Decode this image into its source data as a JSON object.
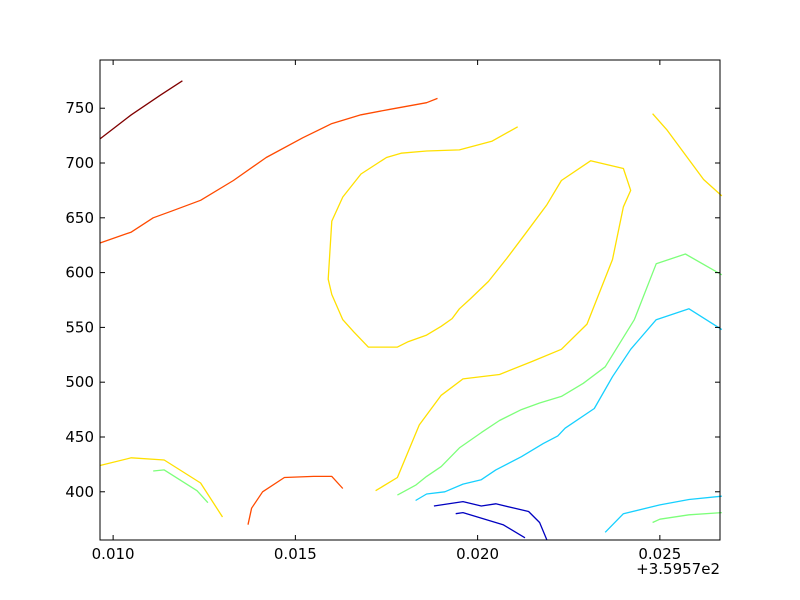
{
  "chart_data": {
    "type": "line",
    "subtype": "contour",
    "title": "",
    "xlabel": "",
    "ylabel": "",
    "x_offset_label": "+3.5957e2",
    "xlim": [
      0.00964,
      0.02665
    ],
    "ylim": [
      356,
      794
    ],
    "xticks": [
      0.01,
      0.015,
      0.02,
      0.025
    ],
    "xtick_labels": [
      "0.010",
      "0.015",
      "0.020",
      "0.025"
    ],
    "yticks": [
      400,
      450,
      500,
      550,
      600,
      650,
      700,
      750
    ],
    "ytick_labels": [
      "400",
      "450",
      "500",
      "550",
      "600",
      "650",
      "700",
      "750"
    ],
    "grid": false,
    "legend": "none",
    "series": [
      {
        "color": "#800000",
        "segments": [
          [
            [
              0.00964,
              722
            ],
            [
              0.0105,
              744
            ],
            [
              0.0113,
              762
            ],
            [
              0.0119,
              775
            ]
          ]
        ]
      },
      {
        "color": "#ff4a00",
        "segments": [
          [
            [
              0.00964,
              627
            ],
            [
              0.0105,
              637
            ],
            [
              0.0111,
              650
            ],
            [
              0.0116,
              656
            ],
            [
              0.0124,
              666
            ],
            [
              0.0133,
              684
            ],
            [
              0.0142,
              705
            ],
            [
              0.0152,
              723
            ],
            [
              0.016,
              736
            ],
            [
              0.0168,
              744
            ],
            [
              0.0176,
              749
            ],
            [
              0.0186,
              755
            ],
            [
              0.0189,
              759
            ]
          ],
          [
            [
              0.0137,
              370
            ],
            [
              0.0138,
              385
            ],
            [
              0.0141,
              400
            ],
            [
              0.0147,
              413
            ],
            [
              0.0155,
              414
            ],
            [
              0.016,
              414
            ],
            [
              0.0163,
              403
            ]
          ]
        ]
      },
      {
        "color": "#ffe000",
        "segments": [
          [
            [
              0.0211,
              733
            ],
            [
              0.0204,
              720
            ],
            [
              0.0195,
              712
            ],
            [
              0.0186,
              711
            ],
            [
              0.0179,
              709
            ],
            [
              0.0175,
              705
            ],
            [
              0.0168,
              690
            ],
            [
              0.0163,
              669
            ],
            [
              0.016,
              647
            ],
            [
              0.0159,
              594
            ],
            [
              0.016,
              580
            ],
            [
              0.0163,
              557
            ],
            [
              0.0166,
              546
            ],
            [
              0.017,
              532
            ],
            [
              0.0178,
              532
            ],
            [
              0.0181,
              537
            ],
            [
              0.0186,
              543
            ],
            [
              0.019,
              551
            ],
            [
              0.0193,
              558
            ],
            [
              0.0195,
              567
            ],
            [
              0.0198,
              576
            ],
            [
              0.0203,
              592
            ],
            [
              0.0208,
              613
            ],
            [
              0.0213,
              635
            ],
            [
              0.0219,
              662
            ],
            [
              0.0223,
              684
            ],
            [
              0.0231,
              702
            ],
            [
              0.024,
              695
            ],
            [
              0.0242,
              675
            ],
            [
              0.024,
              660
            ],
            [
              0.0237,
              612
            ],
            [
              0.023,
              553
            ],
            [
              0.0223,
              530
            ],
            [
              0.0215,
              519
            ],
            [
              0.0206,
              507
            ],
            [
              0.0196,
              503
            ],
            [
              0.019,
              488
            ],
            [
              0.0184,
              461
            ],
            [
              0.0178,
              413
            ],
            [
              0.0172,
              401
            ]
          ],
          [
            [
              0.0248,
              745
            ],
            [
              0.0252,
              730
            ],
            [
              0.0262,
              685
            ],
            [
              0.0267,
              670
            ]
          ],
          [
            [
              0.00964,
              424
            ],
            [
              0.0105,
              431
            ],
            [
              0.0114,
              429
            ],
            [
              0.0124,
              408
            ],
            [
              0.013,
              377
            ]
          ]
        ]
      },
      {
        "color": "#7dff7a",
        "segments": [
          [
            [
              0.0178,
              397
            ],
            [
              0.0183,
              406
            ],
            [
              0.0186,
              414
            ],
            [
              0.019,
              423
            ],
            [
              0.0195,
              440
            ],
            [
              0.0201,
              454
            ],
            [
              0.0206,
              465
            ],
            [
              0.0212,
              475
            ],
            [
              0.0217,
              481
            ],
            [
              0.0223,
              487
            ],
            [
              0.0229,
              499
            ],
            [
              0.0235,
              514
            ],
            [
              0.0243,
              557
            ],
            [
              0.0249,
              608
            ],
            [
              0.0257,
              617
            ],
            [
              0.0267,
              598
            ]
          ],
          [
            [
              0.0111,
              419
            ],
            [
              0.0114,
              420
            ],
            [
              0.0123,
              401
            ],
            [
              0.0126,
              390
            ]
          ],
          [
            [
              0.0248,
              372
            ],
            [
              0.025,
              375
            ],
            [
              0.0258,
              379
            ],
            [
              0.0267,
              381
            ]
          ]
        ]
      },
      {
        "color": "#16d0ff",
        "segments": [
          [
            [
              0.0183,
              392
            ],
            [
              0.0186,
              398
            ],
            [
              0.0191,
              400
            ],
            [
              0.0196,
              407
            ],
            [
              0.0201,
              411
            ],
            [
              0.0205,
              420
            ],
            [
              0.0212,
              432
            ],
            [
              0.0218,
              444
            ],
            [
              0.0222,
              451
            ],
            [
              0.0224,
              458
            ],
            [
              0.0232,
              476
            ],
            [
              0.0237,
              505
            ],
            [
              0.0242,
              530
            ],
            [
              0.0249,
              557
            ],
            [
              0.0258,
              567
            ],
            [
              0.0267,
              548
            ]
          ],
          [
            [
              0.0235,
              363
            ],
            [
              0.024,
              380
            ],
            [
              0.025,
              388
            ],
            [
              0.0258,
              393
            ],
            [
              0.0267,
              396
            ]
          ]
        ]
      },
      {
        "color": "#0000c0",
        "segments": [
          [
            [
              0.0188,
              387
            ],
            [
              0.0196,
              391
            ],
            [
              0.0201,
              387
            ],
            [
              0.0205,
              389
            ],
            [
              0.0214,
              382
            ],
            [
              0.0217,
              372
            ],
            [
              0.0219,
              356
            ]
          ],
          [
            [
              0.0194,
              380
            ],
            [
              0.0196,
              381
            ],
            [
              0.0207,
              370
            ],
            [
              0.0213,
              358
            ]
          ]
        ]
      }
    ]
  }
}
